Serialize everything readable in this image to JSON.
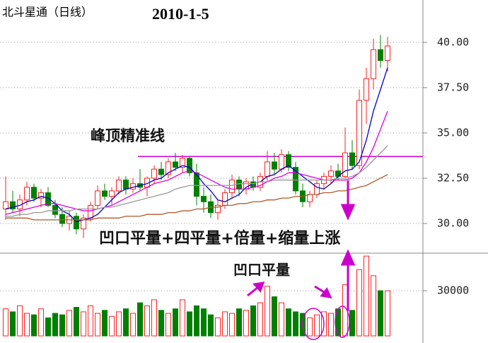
{
  "chart_data": {
    "type": "candlestick",
    "title": "北斗星通（日线）",
    "date_label": "2010-1-5",
    "annotations": [
      "峰顶精准线",
      "凹口平量+四平量+倍量+缩量上涨",
      "凹口平量"
    ],
    "peak_level": 33.7,
    "ylim": [
      28.36,
      42.34
    ],
    "yticks": [
      {
        "value": 30,
        "label": "30.00"
      },
      {
        "value": 32.5,
        "label": "32.50"
      },
      {
        "value": 35,
        "label": "35.00"
      },
      {
        "value": 37.5,
        "label": "37.50"
      },
      {
        "value": 40,
        "label": "40.00"
      }
    ],
    "grid": true,
    "up_color": "#ff2020",
    "down_color": "#008000",
    "open": [
      30.8,
      31.2,
      30.8,
      31.3,
      32.0,
      31.4,
      31.7,
      31.0,
      30.5,
      30.0,
      30.4,
      29.7,
      30.3,
      31.0,
      31.8,
      31.5,
      31.8,
      32.4,
      31.9,
      32.2,
      32.0,
      32.5,
      33.0,
      32.7,
      33.4,
      33.1,
      33.6,
      32.8,
      31.5,
      31.2,
      30.6,
      31.0,
      31.7,
      32.4,
      31.9,
      32.3,
      32.0,
      32.6,
      33.4,
      33.0,
      33.8,
      33.1,
      31.8,
      31.2,
      31.6,
      32.2,
      32.6,
      32.9,
      32.6,
      33.9,
      33.2,
      36.8,
      38.0,
      39.6,
      39.0
    ],
    "high": [
      32.6,
      31.8,
      31.6,
      32.3,
      32.2,
      31.9,
      32.0,
      31.3,
      30.9,
      30.7,
      30.6,
      30.5,
      31.2,
      32.1,
      32.2,
      32.0,
      32.6,
      32.6,
      32.5,
      33.0,
      32.6,
      33.2,
      33.4,
      33.6,
      33.9,
      33.8,
      33.7,
      33.3,
      32.0,
      31.6,
      31.3,
      31.9,
      32.7,
      32.6,
      32.5,
      32.6,
      32.8,
      34.0,
      33.9,
      34.1,
      34.0,
      33.4,
      32.2,
      31.8,
      32.4,
      32.8,
      33.2,
      33.3,
      35.3,
      34.6,
      37.4,
      38.6,
      40.2,
      40.4,
      40.3
    ],
    "low": [
      30.2,
      30.6,
      30.4,
      31.0,
      31.2,
      30.9,
      30.9,
      30.3,
      29.8,
      29.6,
      29.4,
      29.2,
      30.1,
      30.8,
      31.3,
      31.0,
      31.6,
      31.6,
      31.7,
      31.8,
      31.5,
      32.2,
      32.4,
      32.5,
      32.9,
      32.8,
      32.6,
      31.0,
      30.6,
      30.3,
      30.2,
      30.8,
      31.4,
      31.5,
      31.6,
      31.8,
      31.8,
      32.3,
      32.7,
      32.8,
      32.9,
      31.6,
      30.9,
      30.9,
      31.4,
      31.9,
      32.2,
      32.4,
      32.5,
      33.0,
      33.0,
      35.5,
      37.4,
      38.6,
      38.4
    ],
    "close": [
      31.2,
      30.8,
      31.3,
      32.0,
      31.4,
      31.7,
      31.0,
      30.5,
      30.0,
      30.4,
      29.7,
      30.3,
      31.0,
      31.8,
      31.5,
      31.8,
      32.4,
      31.9,
      32.2,
      32.0,
      32.5,
      33.0,
      32.7,
      33.4,
      33.1,
      33.6,
      32.8,
      31.5,
      31.2,
      30.6,
      31.0,
      31.7,
      32.4,
      31.9,
      32.3,
      32.0,
      32.6,
      33.4,
      33.0,
      33.8,
      33.1,
      31.8,
      31.2,
      31.6,
      32.2,
      32.6,
      32.9,
      32.6,
      33.9,
      33.2,
      36.8,
      38.0,
      39.6,
      39.0,
      39.8
    ],
    "lines": [
      {
        "color": "#0000cc",
        "values": [
          30.8,
          30.9,
          31.0,
          31.2,
          31.3,
          31.5,
          31.4,
          31.1,
          30.7,
          30.5,
          30.1,
          30.2,
          30.3,
          30.5,
          30.9,
          31.3,
          31.7,
          31.9,
          32.0,
          32.1,
          32.2,
          32.4,
          32.5,
          32.8,
          33.0,
          33.2,
          33.1,
          32.7,
          32.2,
          31.8,
          31.3,
          31.2,
          31.4,
          31.6,
          32.0,
          32.2,
          32.3,
          32.6,
          32.7,
          33.0,
          33.2,
          32.9,
          32.6,
          32.3,
          32.0,
          31.9,
          32.2,
          32.6,
          32.9,
          33.0,
          33.4,
          34.6,
          36.2,
          37.4,
          38.6
        ]
      },
      {
        "color": "#dd00dd",
        "values": [
          30.5,
          30.6,
          30.7,
          30.8,
          30.9,
          31.0,
          31.1,
          31.1,
          31.0,
          30.9,
          30.8,
          30.7,
          30.7,
          30.8,
          30.9,
          31.0,
          31.2,
          31.4,
          31.6,
          31.8,
          32.0,
          32.2,
          32.3,
          32.4,
          32.6,
          32.8,
          32.9,
          32.8,
          32.6,
          32.4,
          32.2,
          32.0,
          31.9,
          31.9,
          31.9,
          32.0,
          32.1,
          32.3,
          32.5,
          32.6,
          32.8,
          32.8,
          32.7,
          32.6,
          32.5,
          32.4,
          32.4,
          32.4,
          32.4,
          32.5,
          32.8,
          33.4,
          34.2,
          35.2,
          36.2
        ]
      },
      {
        "color": "#999999",
        "values": [
          30.4,
          30.4,
          30.5,
          30.5,
          30.6,
          30.6,
          30.7,
          30.7,
          30.7,
          30.7,
          30.8,
          30.8,
          30.8,
          30.8,
          30.9,
          30.9,
          31.0,
          31.1,
          31.2,
          31.3,
          31.4,
          31.5,
          31.6,
          31.7,
          31.9,
          32.0,
          32.1,
          32.1,
          32.1,
          32.1,
          32.1,
          32.1,
          32.1,
          32.2,
          32.2,
          32.2,
          32.3,
          32.3,
          32.4,
          32.4,
          32.4,
          32.4,
          32.4,
          32.4,
          32.4,
          32.4,
          32.4,
          32.5,
          32.5,
          32.6,
          32.8,
          33.1,
          33.5,
          33.9,
          34.3
        ]
      },
      {
        "color": "#b05a2a",
        "values": [
          30.3,
          30.3,
          30.3,
          30.3,
          30.2,
          30.2,
          30.2,
          30.2,
          30.2,
          30.2,
          30.2,
          30.2,
          30.2,
          30.3,
          30.3,
          30.3,
          30.3,
          30.4,
          30.4,
          30.4,
          30.5,
          30.5,
          30.5,
          30.6,
          30.6,
          30.7,
          30.7,
          30.8,
          30.8,
          30.9,
          30.9,
          31.0,
          31.0,
          31.1,
          31.1,
          31.2,
          31.2,
          31.3,
          31.3,
          31.4,
          31.4,
          31.5,
          31.5,
          31.6,
          31.6,
          31.7,
          31.7,
          31.8,
          31.8,
          31.9,
          32.0,
          32.1,
          32.3,
          32.5,
          32.7
        ]
      }
    ],
    "volume": {
      "ylim": [
        0,
        54000
      ],
      "yticks": [
        30000
      ],
      "values": [
        18000,
        16000,
        20000,
        15000,
        14000,
        18000,
        12000,
        15000,
        14000,
        17000,
        19000,
        16000,
        20000,
        15000,
        17000,
        13000,
        16000,
        18000,
        15000,
        22000,
        20000,
        24000,
        17000,
        15000,
        18000,
        24000,
        16000,
        20000,
        18000,
        14000,
        12000,
        16000,
        15000,
        18000,
        17000,
        20000,
        22000,
        33000,
        26000,
        22000,
        18000,
        16000,
        15000,
        12000,
        14000,
        16000,
        15000,
        18000,
        34000,
        17000,
        44000,
        53000,
        40000,
        30000,
        30000
      ]
    }
  }
}
